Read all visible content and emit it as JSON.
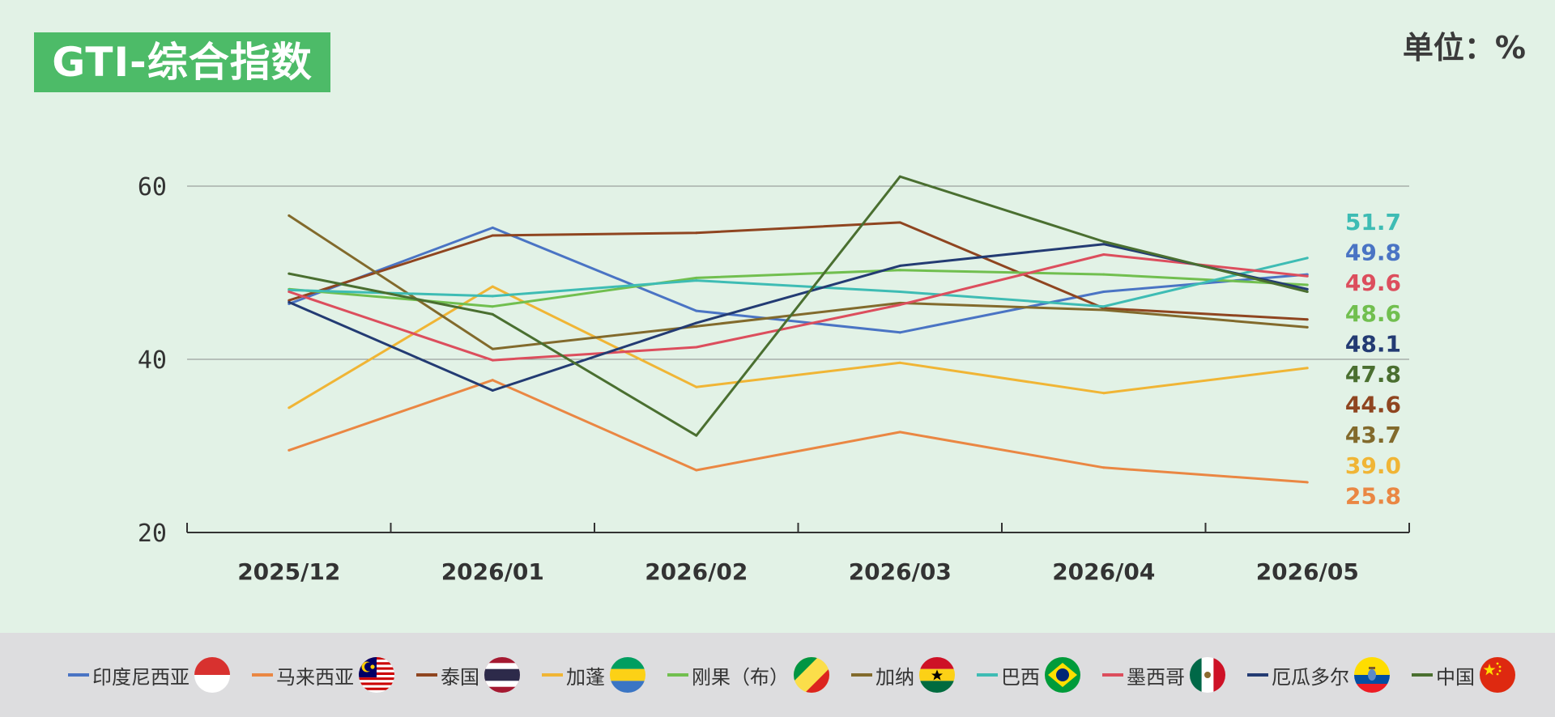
{
  "header": {
    "title": "GTI-综合指数",
    "unit": "单位：%"
  },
  "colors": {
    "background": "#e2f2e6",
    "title_bg": "#4dbb68",
    "legend_bg": "#dddddf"
  },
  "chart_data": {
    "type": "line",
    "title": "GTI-综合指数",
    "unit": "单位：%",
    "xlabel": "",
    "ylabel": "",
    "x": [
      "2025/12",
      "2026/01",
      "2026/02",
      "2026/03",
      "2026/04",
      "2026/05"
    ],
    "ylim": [
      20,
      60
    ],
    "yticks": [
      20,
      40,
      60
    ],
    "grid": "horizontal",
    "legend_position": "bottom",
    "series": [
      {
        "name": "印度尼西亚",
        "color": "#4a74c4",
        "flag": "indonesia",
        "values": [
          46.4,
          55.2,
          45.6,
          43.1,
          47.8,
          49.8
        ],
        "end_label": "49.8"
      },
      {
        "name": "马来西亚",
        "color": "#ea8743",
        "flag": "malaysia",
        "values": [
          29.5,
          37.6,
          27.2,
          31.6,
          27.5,
          25.8
        ],
        "end_label": "25.8"
      },
      {
        "name": "泰国",
        "color": "#8f4520",
        "flag": "thailand",
        "values": [
          46.8,
          54.3,
          54.6,
          55.8,
          45.9,
          44.6
        ],
        "end_label": "44.6"
      },
      {
        "name": "加蓬",
        "color": "#f0b535",
        "flag": "gabon",
        "values": [
          34.4,
          48.4,
          36.8,
          39.6,
          36.1,
          39.0
        ],
        "end_label": "39.0"
      },
      {
        "name": "刚果（布）",
        "color": "#71bf4f",
        "flag": "congo",
        "values": [
          48.1,
          46.1,
          49.4,
          50.3,
          49.8,
          48.6
        ],
        "end_label": "48.6"
      },
      {
        "name": "加纳",
        "color": "#826a2c",
        "flag": "ghana",
        "values": [
          56.6,
          41.2,
          43.8,
          46.5,
          45.7,
          43.7
        ],
        "end_label": "43.7"
      },
      {
        "name": "巴西",
        "color": "#3ebcb4",
        "flag": "brazil",
        "values": [
          48.0,
          47.3,
          49.1,
          47.8,
          46.1,
          51.7
        ],
        "end_label": "51.7"
      },
      {
        "name": "墨西哥",
        "color": "#dc4e5d",
        "flag": "mexico",
        "values": [
          47.8,
          39.9,
          41.4,
          46.3,
          52.1,
          49.6
        ],
        "end_label": "49.6"
      },
      {
        "name": "厄瓜多尔",
        "color": "#233b73",
        "flag": "ecuador",
        "values": [
          46.6,
          36.4,
          44.2,
          50.8,
          53.3,
          48.1
        ],
        "end_label": "48.1"
      },
      {
        "name": "中国",
        "color": "#4a6f30",
        "flag": "china",
        "values": [
          49.9,
          45.2,
          31.2,
          61.1,
          53.6,
          47.8
        ],
        "end_label": "47.8"
      }
    ],
    "end_labels_order": [
      "巴西",
      "印度尼西亚",
      "墨西哥",
      "刚果（布）",
      "厄瓜多尔",
      "中国",
      "泰国",
      "加纳",
      "加蓬",
      "马来西亚"
    ]
  }
}
